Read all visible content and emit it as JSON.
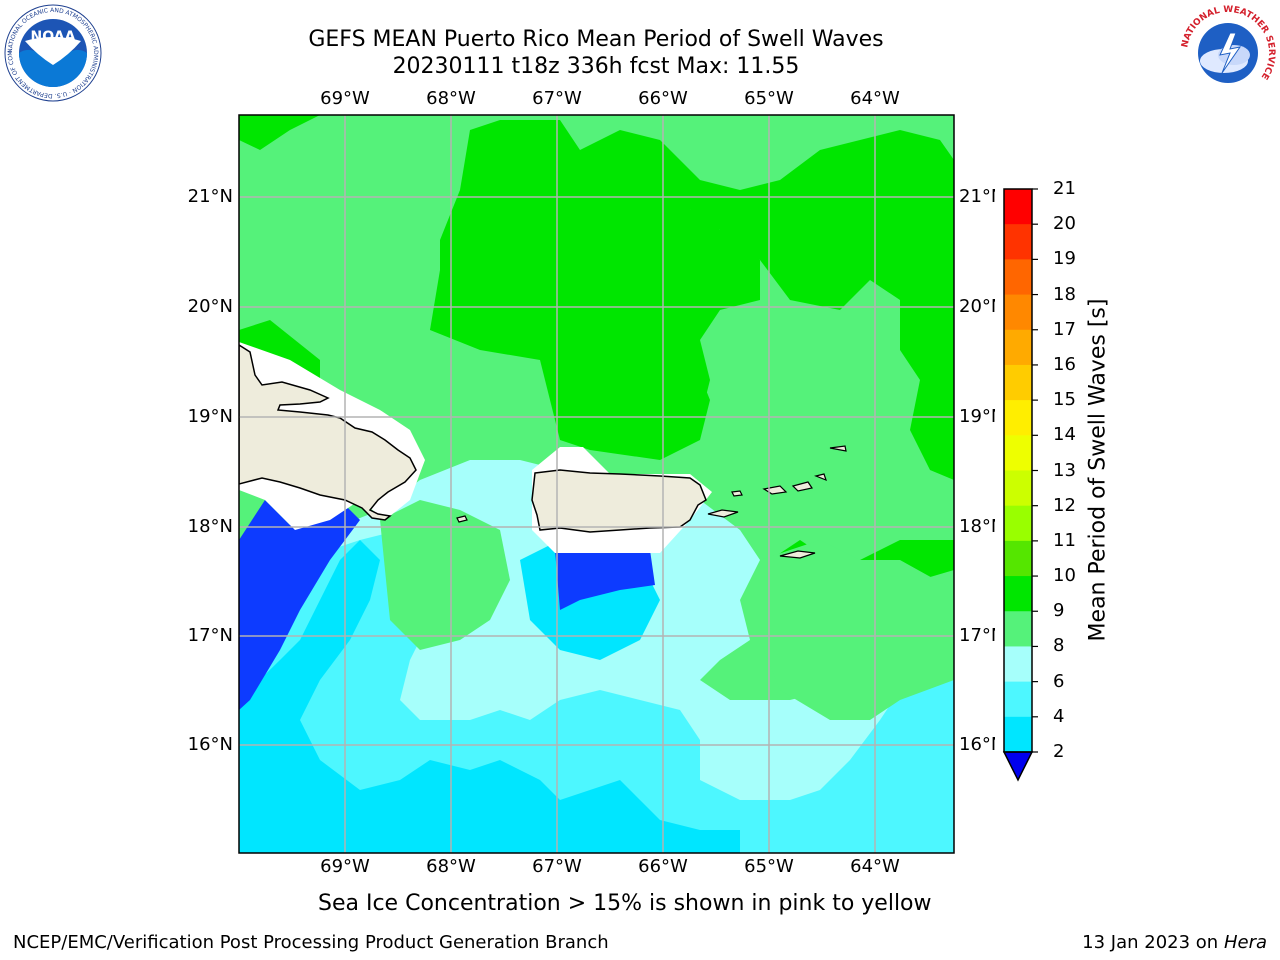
{
  "header": {
    "title_line1": "GEFS MEAN Puerto Rico Mean Period of Swell Waves",
    "title_line2": "20230111 t18z 336h fcst   Max: 11.55"
  },
  "map": {
    "lon_labels": [
      "69°W",
      "68°W",
      "67°W",
      "66°W",
      "65°W",
      "64°W"
    ],
    "lat_labels": [
      "21°N",
      "20°N",
      "19°N",
      "18°N",
      "17°N",
      "16°N"
    ],
    "colors": {
      "land": "#eeecdc",
      "coast": "#000000",
      "gridline": "#b3b3b3",
      "band_2_4": "#0d3bff",
      "band_4_6": "#00e6ff",
      "band_6_8": "#4df7ff",
      "band_8_9": "#a6fffb",
      "band_9_10": "#55f27a",
      "band_10_11": "#00e600"
    }
  },
  "colorbar": {
    "title": "Mean Period of Swell Waves [s]",
    "ticks": [
      "21",
      "20",
      "19",
      "18",
      "17",
      "16",
      "15",
      "14",
      "13",
      "12",
      "11",
      "10",
      "9",
      "8",
      "6",
      "4",
      "2"
    ],
    "colors": [
      "#ff0000",
      "#ff3300",
      "#ff6600",
      "#ff8800",
      "#ffaa00",
      "#ffcc00",
      "#ffee00",
      "#eeff00",
      "#ccff00",
      "#99ff00",
      "#55e600",
      "#00e600",
      "#55f27a",
      "#a6fffb",
      "#4df7ff",
      "#00e6ff",
      "#0077ff",
      "#0000ee"
    ]
  },
  "footer": {
    "note": "Sea Ice Concentration > 15% is shown in pink to yellow",
    "credit": "NCEP/EMC/Verification Post Processing Product Generation Branch",
    "date": "13 Jan 2023 on ",
    "host": "Hera"
  },
  "logos": {
    "noaa_text": "NOAA",
    "noaa_ring": "NATIONAL OCEANIC AND ATMOSPHERIC ADMINISTRATION · U.S. DEPARTMENT OF COMMERCE",
    "nws_ring": "NATIONAL WEATHER SERVICE"
  }
}
